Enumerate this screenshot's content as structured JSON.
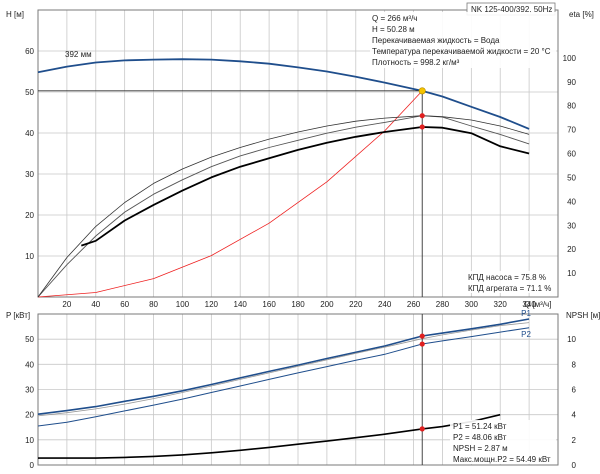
{
  "chart_data": [
    {
      "type": "line",
      "title": "NK 125-400/392, 50Hz",
      "x_axis": {
        "label": "Q [м³/ч]",
        "range": [
          0,
          360
        ],
        "ticks": [
          20,
          40,
          60,
          80,
          100,
          120,
          140,
          160,
          180,
          200,
          220,
          240,
          260,
          280,
          300,
          320,
          340
        ]
      },
      "left_axis": {
        "label": "H [м]",
        "range": [
          0,
          70
        ],
        "ticks": [
          10,
          20,
          30,
          40,
          50,
          60
        ]
      },
      "right_axis": {
        "label": "eta [%]",
        "range": [
          0,
          120
        ],
        "ticks": [
          10,
          20,
          30,
          40,
          50,
          60,
          70,
          80,
          90,
          100
        ]
      },
      "grid": true,
      "annotation_curve_label": "392 мм",
      "info_box": [
        "Q = 266 м³/ч",
        "H = 50.28 м",
        "Перекачиваемая жидкость = Вода",
        "Температура перекачиваемой жидкости = 20 °C",
        "Плотность = 998.2 кг/м³"
      ],
      "efficiency_notes": [
        "КПД насоса = 75.8 %",
        "КПД агрегата = 71.1 %"
      ],
      "duty_point": {
        "q": 266,
        "h": 50.28,
        "eta_pump": 75.8,
        "eta_unit": 71.1
      },
      "series": [
        {
          "axis": "left",
          "color": "#1f4e8c",
          "width": 1.8,
          "x": [
            0,
            20,
            40,
            60,
            80,
            100,
            120,
            140,
            160,
            180,
            200,
            220,
            240,
            266,
            280,
            300,
            320,
            340
          ],
          "values": [
            54.8,
            56.2,
            57.2,
            57.7,
            57.9,
            58.0,
            57.9,
            57.5,
            56.9,
            56.0,
            55.0,
            53.7,
            52.3,
            50.28,
            48.9,
            46.4,
            43.9,
            41.0
          ]
        },
        {
          "axis": "left",
          "color": "#ee2020",
          "width": 0.8,
          "x": [
            0,
            40,
            80,
            120,
            160,
            200,
            240,
            266
          ],
          "values": [
            0,
            1.1,
            4.5,
            10.1,
            18.0,
            28.1,
            40.5,
            50.28
          ]
        },
        {
          "axis": "right",
          "color": "#555555",
          "width": 0.9,
          "x": [
            0,
            20,
            40,
            60,
            80,
            100,
            120,
            140,
            160,
            180,
            200,
            220,
            240,
            266,
            280,
            300,
            320,
            340
          ],
          "values": [
            0,
            13.5,
            25.5,
            35.5,
            43.0,
            49.0,
            54.5,
            59.0,
            62.5,
            65.5,
            68.5,
            71.0,
            73.0,
            75.8,
            75.2,
            71.5,
            68.0,
            64.0
          ]
        },
        {
          "axis": "right",
          "color": "#000000",
          "width": 1.8,
          "x": [
            30,
            40,
            60,
            80,
            100,
            120,
            140,
            160,
            180,
            200,
            220,
            240,
            266,
            280,
            300,
            320,
            340
          ],
          "values": [
            21.5,
            23.5,
            32.0,
            38.5,
            44.5,
            50.0,
            54.5,
            58.0,
            61.5,
            64.5,
            67.0,
            69.0,
            71.1,
            70.8,
            68.5,
            63.0,
            60.0
          ]
        },
        {
          "axis": "right",
          "color": "#333333",
          "width": 0.8,
          "x": [
            0,
            20,
            40,
            60,
            80,
            100,
            120,
            140,
            160,
            180,
            200,
            220,
            240,
            266,
            280,
            300,
            320,
            340
          ],
          "values": [
            0,
            16.5,
            29.5,
            39.5,
            47.5,
            53.5,
            58.5,
            62.5,
            66.0,
            69.0,
            71.5,
            73.5,
            74.8,
            75.8,
            75.4,
            74.0,
            71.5,
            68.0
          ]
        }
      ]
    },
    {
      "type": "line",
      "x_axis": {
        "range": [
          0,
          360
        ]
      },
      "left_axis": {
        "label": "P [кВт]",
        "range": [
          0,
          60
        ],
        "ticks": [
          0,
          10,
          20,
          30,
          40,
          50
        ]
      },
      "right_axis": {
        "label": "NPSH [м]",
        "range": [
          0,
          12
        ],
        "ticks": [
          0,
          2,
          4,
          6,
          8,
          10
        ]
      },
      "grid": true,
      "readout": [
        "P1 = 51.24 кВт",
        "P2 = 48.06 кВт",
        "NPSH = 2.87 м",
        "Макс.мощн.P2 = 54.49 кВт"
      ],
      "duty_point": {
        "q": 266,
        "p1": 51.24,
        "p2": 48.06,
        "npsh": 2.87
      },
      "series": [
        {
          "name": "P1",
          "axis": "left",
          "color": "#1f4e8c",
          "width": 1.6,
          "x": [
            0,
            20,
            40,
            60,
            80,
            100,
            120,
            140,
            160,
            180,
            200,
            220,
            240,
            266,
            280,
            300,
            320,
            340
          ],
          "values": [
            20.2,
            21.6,
            23.2,
            25.3,
            27.3,
            29.5,
            32.0,
            34.6,
            37.2,
            39.7,
            42.3,
            44.8,
            47.3,
            51.24,
            52.4,
            54.1,
            55.9,
            58.0
          ]
        },
        {
          "name": "P2",
          "axis": "left",
          "color": "#1f4e8c",
          "width": 1.0,
          "x": [
            0,
            20,
            40,
            60,
            80,
            100,
            120,
            140,
            160,
            180,
            200,
            220,
            240,
            266,
            280,
            300,
            320,
            340
          ],
          "values": [
            15.5,
            17.0,
            19.2,
            21.5,
            23.8,
            26.2,
            28.8,
            31.4,
            34.0,
            36.6,
            39.1,
            41.6,
            44.0,
            48.06,
            49.3,
            51.0,
            52.8,
            54.5
          ]
        },
        {
          "name": "P-ext",
          "axis": "left",
          "color": "#999999",
          "width": 0.8,
          "x": [
            0,
            20,
            40,
            60,
            80,
            100,
            120,
            140,
            160,
            180,
            200,
            220,
            240,
            266,
            280,
            300,
            320,
            340
          ],
          "values": [
            19.5,
            20.8,
            22.3,
            24.2,
            26.4,
            28.8,
            31.4,
            34.0,
            36.6,
            39.2,
            41.8,
            44.4,
            46.8,
            50.2,
            51.7,
            53.6,
            55.4,
            56.6
          ]
        },
        {
          "name": "NPSH",
          "axis": "right",
          "color": "#000000",
          "width": 1.6,
          "x": [
            0,
            40,
            60,
            80,
            100,
            120,
            140,
            160,
            180,
            200,
            220,
            240,
            266,
            280,
            300,
            320
          ],
          "values": [
            0.55,
            0.55,
            0.6,
            0.68,
            0.8,
            0.97,
            1.17,
            1.4,
            1.65,
            1.9,
            2.17,
            2.45,
            2.87,
            3.05,
            3.45,
            4.0
          ]
        }
      ]
    }
  ]
}
